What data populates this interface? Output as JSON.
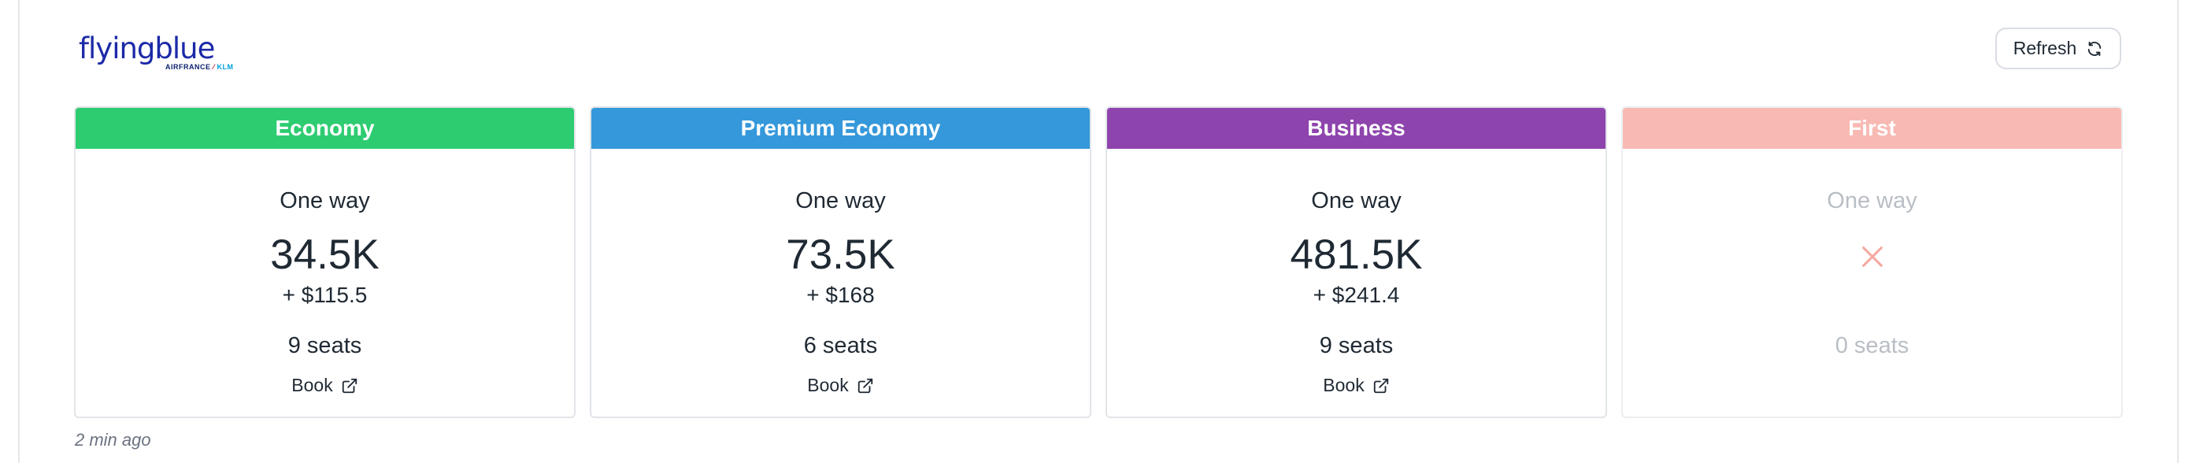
{
  "brand": {
    "logo_text": "flyingblue",
    "partners_air_france": "AIRFRANCE",
    "partners_klm": "KLM"
  },
  "toolbar": {
    "refresh_label": "Refresh"
  },
  "cabins": [
    {
      "name": "Economy",
      "color": "#2ecc71",
      "trip_type": "One way",
      "miles": "34.5K",
      "taxes": "+ $115.5",
      "seats": "9 seats",
      "book_label": "Book",
      "available": true
    },
    {
      "name": "Premium Economy",
      "color": "#3498db",
      "trip_type": "One way",
      "miles": "73.5K",
      "taxes": "+ $168",
      "seats": "6 seats",
      "book_label": "Book",
      "available": true
    },
    {
      "name": "Business",
      "color": "#8e44ad",
      "trip_type": "One way",
      "miles": "481.5K",
      "taxes": "+ $241.4",
      "seats": "9 seats",
      "book_label": "Book",
      "available": true
    },
    {
      "name": "First",
      "color": "#f8b9b3",
      "trip_type": "One way",
      "seats": "0 seats",
      "available": false,
      "unavailable_icon": "x-icon"
    }
  ],
  "status": {
    "updated": "2 min ago"
  }
}
